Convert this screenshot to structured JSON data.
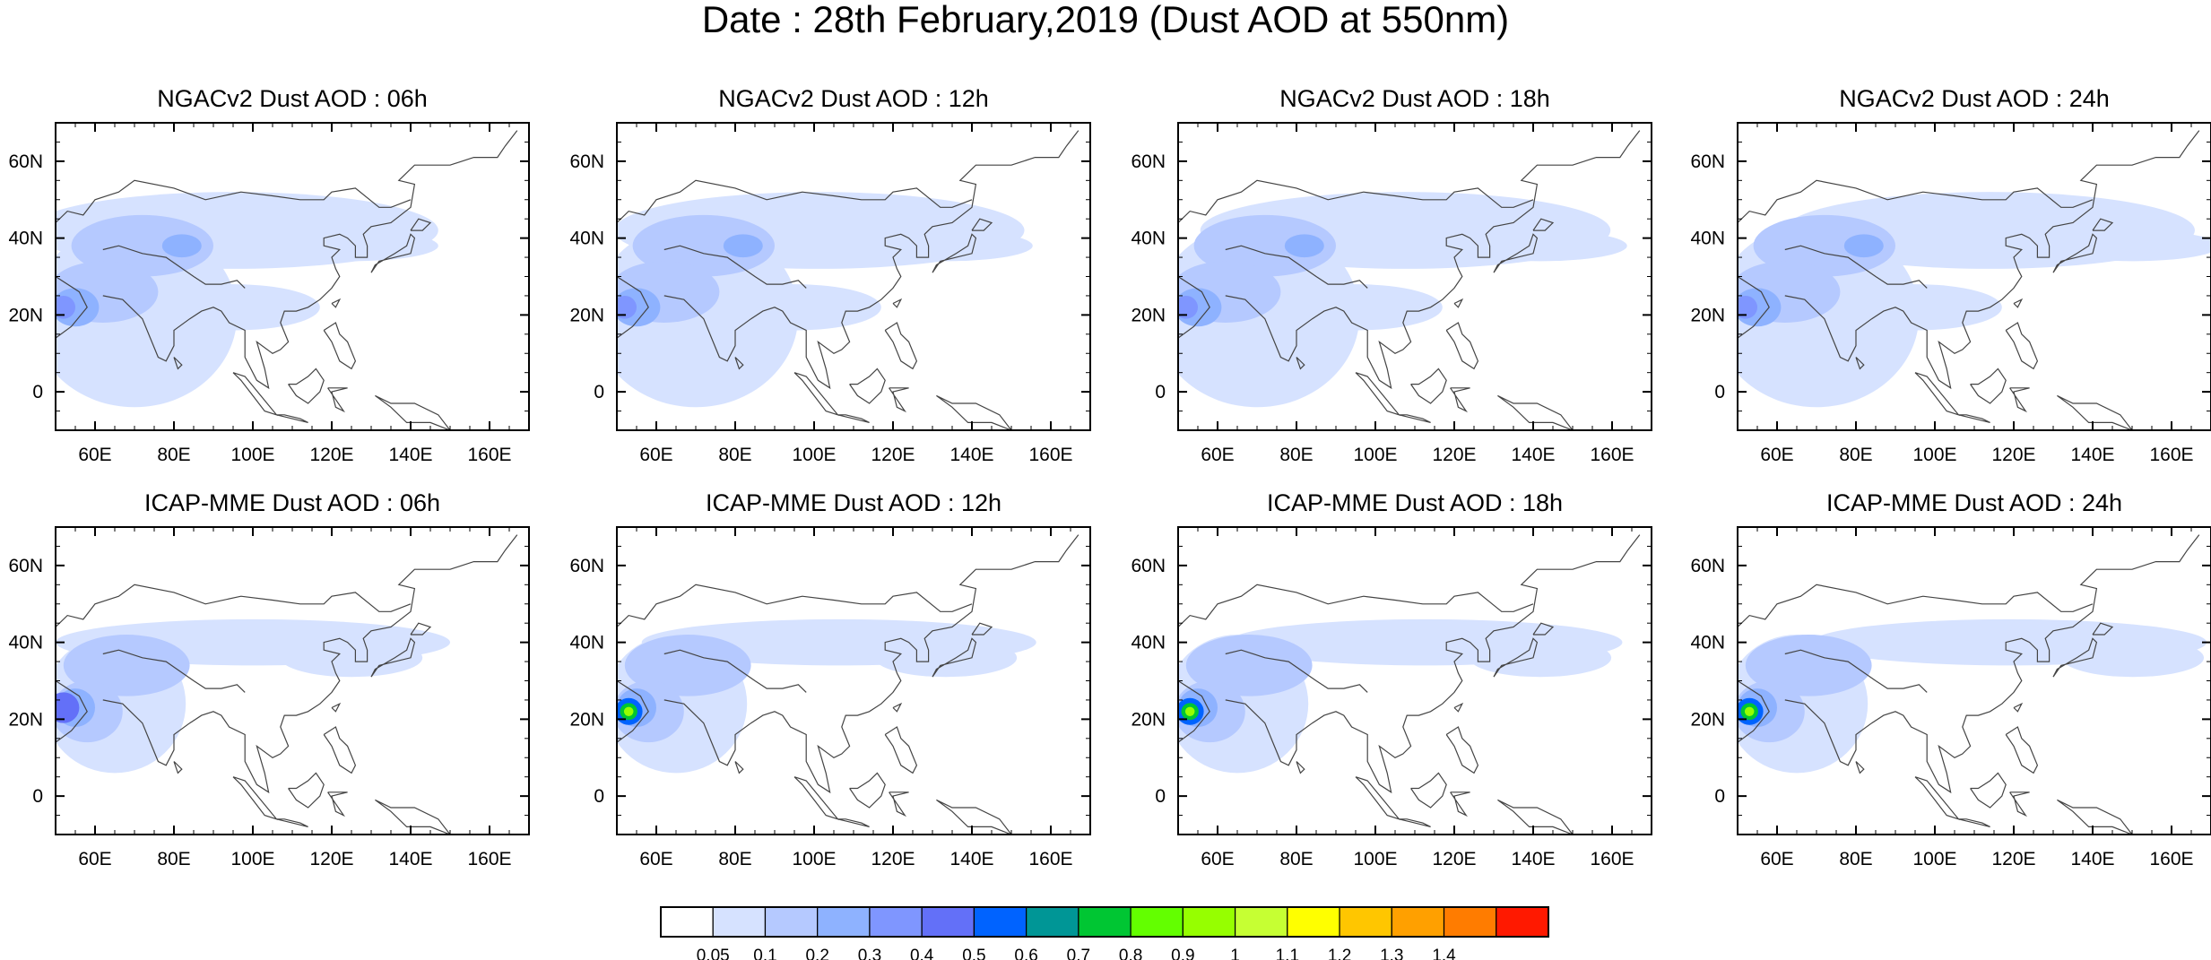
{
  "main_title": "Date : 28th February,2019 (Dust AOD at 550nm)",
  "chart_data": {
    "type": "heatmap",
    "title": "Date : 28th February,2019 (Dust AOD at 550nm)",
    "variable": "Dust AOD at 550nm",
    "x_ticks": [
      "60E",
      "80E",
      "100E",
      "120E",
      "140E",
      "160E"
    ],
    "x_tick_values": [
      60,
      80,
      100,
      120,
      140,
      160
    ],
    "y_ticks": [
      "60N",
      "40N",
      "20N",
      "0"
    ],
    "y_tick_values": [
      60,
      40,
      20,
      0
    ],
    "xlim": [
      50,
      170
    ],
    "ylim": [
      -10,
      70
    ],
    "panels": [
      {
        "title": "NGACv2 Dust AOD : 06h",
        "model": "NGACv2",
        "hour": 6
      },
      {
        "title": "NGACv2 Dust AOD : 12h",
        "model": "NGACv2",
        "hour": 12
      },
      {
        "title": "NGACv2 Dust AOD : 18h",
        "model": "NGACv2",
        "hour": 18
      },
      {
        "title": "NGACv2 Dust AOD : 24h",
        "model": "NGACv2",
        "hour": 24
      },
      {
        "title": "ICAP-MME Dust AOD : 06h",
        "model": "ICAP-MME",
        "hour": 6
      },
      {
        "title": "ICAP-MME Dust AOD : 12h",
        "model": "ICAP-MME",
        "hour": 12
      },
      {
        "title": "ICAP-MME Dust AOD : 18h",
        "model": "ICAP-MME",
        "hour": 18
      },
      {
        "title": "ICAP-MME Dust AOD : 24h",
        "model": "ICAP-MME",
        "hour": 24
      }
    ],
    "colorbar": {
      "labels": [
        "0.05",
        "0.1",
        "0.2",
        "0.3",
        "0.4",
        "0.5",
        "0.6",
        "0.7",
        "0.8",
        "0.9",
        "1",
        "1.1",
        "1.2",
        "1.3",
        "1.4"
      ],
      "colors": [
        "#ffffff",
        "#d6e2ff",
        "#b5c9ff",
        "#8eb2ff",
        "#7f96ff",
        "#6370f8",
        "#0063ff",
        "#009696",
        "#00c633",
        "#63ff00",
        "#96ff00",
        "#c6ff33",
        "#ffff00",
        "#ffc600",
        "#ffa000",
        "#ff7c00",
        "#ff1900"
      ]
    }
  }
}
